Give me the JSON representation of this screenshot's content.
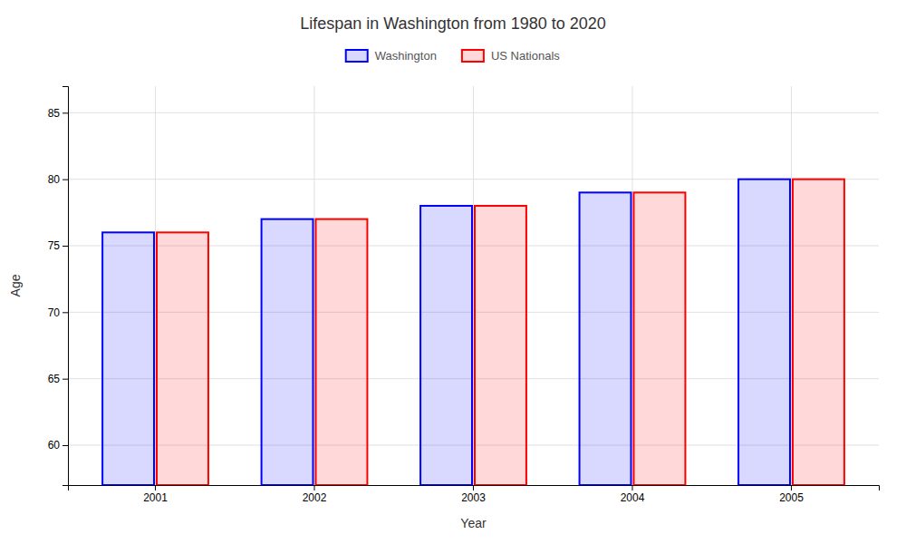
{
  "chart_data": {
    "type": "bar",
    "title": "Lifespan in Washington from 1980 to 2020",
    "x_label": "Year",
    "y_label": "Age",
    "categories": [
      "2001",
      "2002",
      "2003",
      "2004",
      "2005"
    ],
    "series": [
      {
        "name": "Washington",
        "color": "#0000ff",
        "values": [
          76,
          77,
          78,
          79,
          80
        ]
      },
      {
        "name": "US Nationals",
        "color": "#ff0000",
        "values": [
          76,
          77,
          78,
          79,
          80
        ]
      }
    ],
    "ylim": [
      57,
      87
    ],
    "yticks": [
      60,
      65,
      70,
      75,
      80,
      85
    ],
    "grid": true,
    "legend": "top"
  }
}
